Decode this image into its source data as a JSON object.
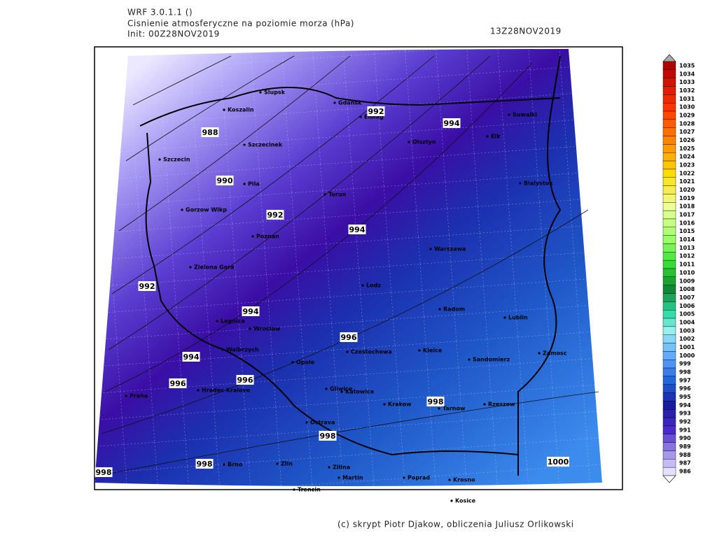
{
  "header": {
    "model": "WRF 3.0.1.1 ()",
    "field": "Cisnienie atmosferyczne na poziomie morza (hPa)",
    "init": "Init: 00Z28NOV2019",
    "valid": "13Z28NOV2019"
  },
  "map": {
    "cities": [
      "Slupsk",
      "Koszalin",
      "Gdansk",
      "Elblag",
      "Olsztyn",
      "Suwalki",
      "Elk",
      "Szczecinek",
      "Szczecin",
      "Pila",
      "Bialystok",
      "Torun",
      "Gorzow Wlkp",
      "Poznan",
      "Warszawa",
      "Zielona Gora",
      "Lodz",
      "Radom",
      "Lublin",
      "Legnica",
      "Wroclaw",
      "Walbrzych",
      "Czestochowa",
      "Kielce",
      "Opole",
      "Sandomierz",
      "Zamosc",
      "Hradec Kralove",
      "Praha",
      "Gliwice",
      "Katowice",
      "Krakow",
      "Tarnow",
      "Rzeszow",
      "Ostrava",
      "Brno",
      "Zlin",
      "Zilina",
      "Martin",
      "Poprad",
      "Krosno",
      "Trencin",
      "Kosice"
    ],
    "contour_labels": [
      "988",
      "990",
      "992",
      "992",
      "994",
      "994",
      "992",
      "994",
      "996",
      "994",
      "996",
      "996",
      "998",
      "998",
      "998",
      "998",
      "1000"
    ]
  },
  "colorbar": {
    "labels": [
      "1035",
      "1034",
      "1033",
      "1032",
      "1031",
      "1030",
      "1029",
      "1028",
      "1027",
      "1026",
      "1025",
      "1024",
      "1023",
      "1022",
      "1021",
      "1020",
      "1019",
      "1018",
      "1017",
      "1016",
      "1015",
      "1014",
      "1013",
      "1012",
      "1011",
      "1010",
      "1009",
      "1008",
      "1007",
      "1006",
      "1005",
      "1004",
      "1003",
      "1002",
      "1001",
      "1000",
      "999",
      "998",
      "997",
      "996",
      "995",
      "994",
      "993",
      "992",
      "991",
      "990",
      "989",
      "988",
      "987",
      "986"
    ]
  },
  "footer": "(c) skrypt Piotr Djakow, obliczenia Juliusz Orlikowski"
}
